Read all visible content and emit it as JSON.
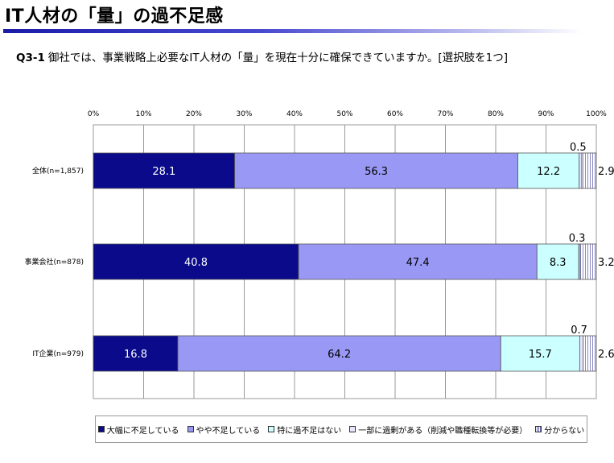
{
  "page": {
    "title": "IT人材の「量」の過不足感",
    "question_id": "Q3-1",
    "question_text": "御社では、事業戦略上必要なIT人材の「量」を現在十分に確保できていますか。[選択肢を1つ]"
  },
  "colors": {
    "grid": "#9a9a9a",
    "bar_border": "#555555",
    "hatch_lines": "#6b6bb8"
  },
  "chart_data": {
    "type": "bar",
    "orientation": "horizontal",
    "stacked": "100-percent",
    "categories": [
      "全体(n=1,857)",
      "事業会社(n=878)",
      "IT企業(n=979)"
    ],
    "xlim": [
      0,
      100
    ],
    "xticks": [
      "0%",
      "10%",
      "20%",
      "30%",
      "40%",
      "50%",
      "60%",
      "70%",
      "80%",
      "90%",
      "100%"
    ],
    "grid": true,
    "legend_position": "bottom",
    "series": [
      {
        "name": "大幅に不足している",
        "values": [
          28.1,
          40.8,
          16.8
        ],
        "labels": [
          "28.1",
          "40.8",
          "16.8"
        ],
        "color": "#0a0a8a",
        "pattern": "solid",
        "label_color": "#ffffff"
      },
      {
        "name": "やや不足している",
        "values": [
          56.3,
          47.4,
          64.2
        ],
        "labels": [
          "56.3",
          "47.4",
          "64.2"
        ],
        "color": "#9999f5",
        "pattern": "solid",
        "label_color": "#000000"
      },
      {
        "name": "特に過不足はない",
        "values": [
          12.2,
          8.3,
          15.7
        ],
        "labels": [
          "12.2",
          "8.3",
          "15.7"
        ],
        "color": "#ccffff",
        "pattern": "solid",
        "label_color": "#000000"
      },
      {
        "name": "一部に過剰がある（削減や職種転換等が必要）",
        "values": [
          0.5,
          0.3,
          0.7
        ],
        "labels": [
          "0.5",
          "0.3",
          "0.7"
        ],
        "color": "#e6e6ff",
        "pattern": "solid",
        "label_color": "#000000"
      },
      {
        "name": "分からない",
        "values": [
          2.9,
          3.2,
          2.6
        ],
        "labels": [
          "2.9",
          "3.2",
          "2.6"
        ],
        "color": "#ffffff",
        "pattern": "vertical-lines",
        "label_color": "#000000"
      }
    ]
  }
}
